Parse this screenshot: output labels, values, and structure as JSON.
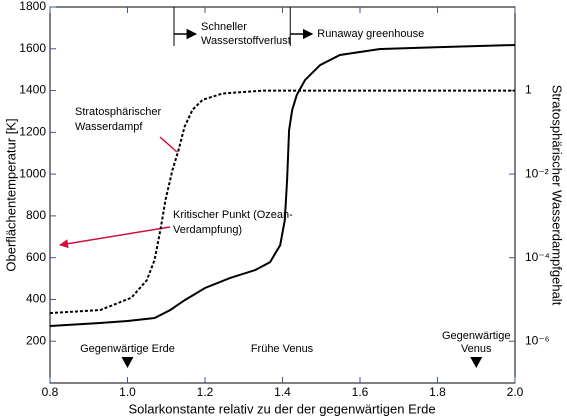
{
  "chart_data": {
    "type": "line",
    "xlabel": "Solarkonstante relativ zu der der gegenwärtigen Erde",
    "ylabel": "Oberflächentemperatur [K]",
    "y2label": "Stratosphärischer Wasserdampfgehalt",
    "xlim": [
      0.8,
      2.0
    ],
    "xticks": [
      0.8,
      {
        "value": 1,
        "label": "1.0"
      },
      1.2,
      1.4,
      1.6,
      1.8,
      {
        "value": 2,
        "label": "2.0"
      }
    ],
    "ylim": [
      0,
      1800
    ],
    "yticks": [
      200,
      400,
      600,
      800,
      1000,
      1200,
      1400,
      1600,
      1800
    ],
    "y2lim": [
      1e-07,
      100
    ],
    "y2scale": "log",
    "y2ticks": [
      {
        "value": 1e-06,
        "label": "10⁻⁶"
      },
      {
        "value": 0.0001,
        "label": "10⁻⁴"
      },
      {
        "value": 0.01,
        "label": "10⁻²"
      },
      1
    ],
    "series": [
      {
        "color": "#000000",
        "dash": false,
        "x": [
          0.8,
          0.929,
          1.0,
          1.07,
          1.11,
          1.148,
          1.2,
          1.265,
          1.33,
          1.368,
          1.394,
          1.406,
          1.412,
          1.417,
          1.425,
          1.437,
          1.458,
          1.497,
          1.548,
          1.652,
          1.806,
          2.0
        ],
        "values": [
          273,
          287,
          297,
          311,
          349,
          397,
          455,
          503,
          541,
          579,
          660,
          780,
          972,
          1211,
          1307,
          1379,
          1450,
          1522,
          1570,
          1599,
          1608,
          1618
        ]
      },
      {
        "color": "#000000",
        "dash": true,
        "axis": "y2",
        "x": [
          0.8,
          0.93,
          1.01,
          1.05,
          1.07,
          1.085,
          1.098,
          1.116,
          1.132,
          1.147,
          1.168,
          1.194,
          1.245,
          1.35,
          2.0
        ],
        "values": [
          4.7e-06,
          5.6e-06,
          1.1e-05,
          2.9e-05,
          8.9e-05,
          0.00046,
          0.0024,
          0.0126,
          0.038,
          0.135,
          0.35,
          0.6,
          0.85,
          1,
          1
        ]
      }
    ],
    "thresholds": [
      {
        "x": 1.12,
        "lines": [
          "Schneller",
          "Wasserstoffverlust"
        ]
      },
      {
        "x": 1.42,
        "lines": [
          "Runaway greenhouse"
        ]
      }
    ],
    "markers": [
      {
        "x": 1.0,
        "lines": [
          "Gegenwärtige Erde"
        ]
      },
      {
        "x": 1.9,
        "lines": [
          "Gegenwärtige",
          "Venus"
        ]
      }
    ],
    "annotations": [
      {
        "lines": [
          "Stratosphärischer",
          "Wasserdampf"
        ]
      },
      {
        "lines": [
          "Kritischer Punkt (Ozean-",
          "Verdampfung)"
        ]
      },
      {
        "lines": [
          "Frühe Venus"
        ]
      }
    ]
  }
}
